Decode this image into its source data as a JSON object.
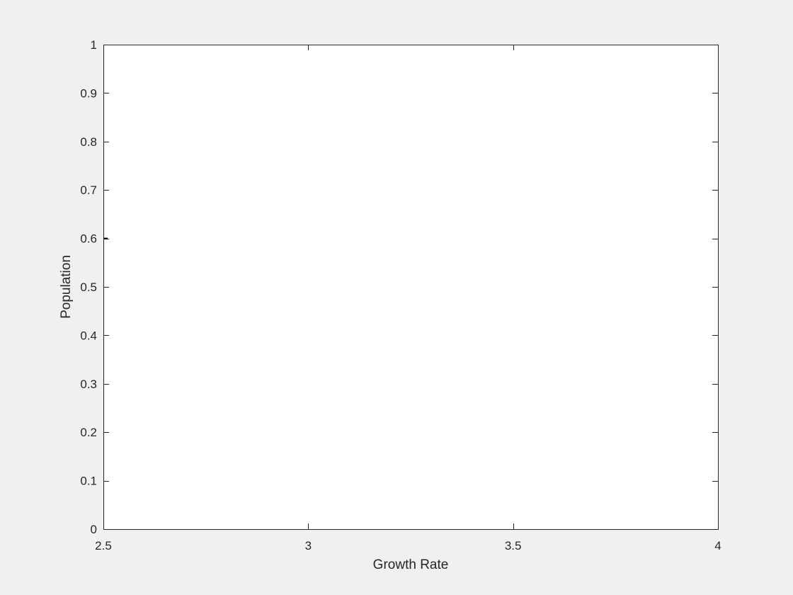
{
  "chart_data": {
    "type": "scatter",
    "title": "",
    "xlabel": "Growth Rate",
    "ylabel": "Population",
    "xlim": [
      2.5,
      4
    ],
    "ylim": [
      0,
      1
    ],
    "x_ticks": [
      2.5,
      3,
      3.5,
      4
    ],
    "x_tick_labels": [
      "2.5",
      "3",
      "3.5",
      "4"
    ],
    "y_ticks": [
      0,
      0.1,
      0.2,
      0.3,
      0.4,
      0.5,
      0.6,
      0.7,
      0.8,
      0.9,
      1
    ],
    "y_tick_labels": [
      "0",
      "0.1",
      "0.2",
      "0.3",
      "0.4",
      "0.5",
      "0.6",
      "0.7",
      "0.8",
      "0.9",
      "1"
    ],
    "grid": false,
    "series": [
      {
        "x": [
          2.5
        ],
        "y": [
          0.6
        ],
        "color": "#000000"
      }
    ],
    "colors": {
      "figure_background": "#f0f0f0",
      "axes_background": "#ffffff",
      "axis_color": "#262626"
    }
  }
}
